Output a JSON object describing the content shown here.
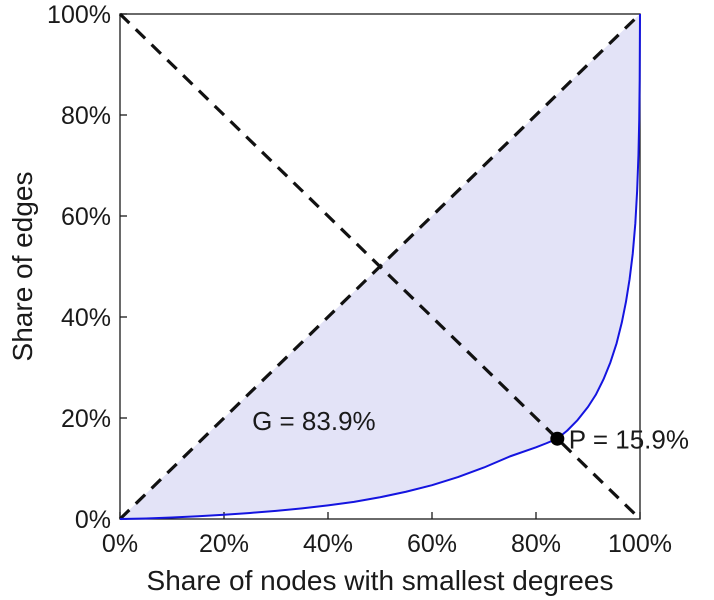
{
  "figure": {
    "background": "#ffffff",
    "text_color": "#1a1a1a"
  },
  "chart_data": {
    "type": "line",
    "title": "",
    "xlabel": "Share of nodes with smallest degrees",
    "ylabel": "Share of edges",
    "xlim": [
      0,
      100
    ],
    "ylim": [
      0,
      100
    ],
    "xticks": [
      0,
      20,
      40,
      60,
      80,
      100
    ],
    "yticks": [
      0,
      20,
      40,
      60,
      80,
      100
    ],
    "tick_suffix": "%",
    "grid": false,
    "legend": "none",
    "axis_color": "#1a1a1a",
    "reference_lines": [
      {
        "name": "equality-line",
        "from": [
          0,
          0
        ],
        "to": [
          100,
          100
        ],
        "color": "#111111",
        "style": "dashed"
      },
      {
        "name": "anti-diagonal-line",
        "from": [
          0,
          100
        ],
        "to": [
          100,
          0
        ],
        "color": "#111111",
        "style": "dashed"
      }
    ],
    "series": [
      {
        "name": "lorenz-curve-of-degree-distribution",
        "color": "#1414e0",
        "fill": "between-equality-line-and-curve",
        "fill_color": "#e3e3f7",
        "points": [
          [
            0,
            0
          ],
          [
            5,
            0.1
          ],
          [
            10,
            0.3
          ],
          [
            15,
            0.55
          ],
          [
            20,
            0.85
          ],
          [
            25,
            1.2
          ],
          [
            30,
            1.6
          ],
          [
            35,
            2.1
          ],
          [
            40,
            2.7
          ],
          [
            45,
            3.4
          ],
          [
            50,
            4.3
          ],
          [
            55,
            5.4
          ],
          [
            60,
            6.7
          ],
          [
            65,
            8.3
          ],
          [
            70,
            10.2
          ],
          [
            75,
            12.4
          ],
          [
            80,
            14.2
          ],
          [
            82,
            15.0
          ],
          [
            84.1,
            15.9
          ],
          [
            86,
            17.5
          ],
          [
            88,
            19.6
          ],
          [
            90,
            22.2
          ],
          [
            91.5,
            24.6
          ],
          [
            93,
            27.7
          ],
          [
            94.3,
            31
          ],
          [
            95.5,
            34.8
          ],
          [
            96.5,
            38.9
          ],
          [
            97.3,
            43
          ],
          [
            98,
            47.5
          ],
          [
            98.6,
            52.5
          ],
          [
            99.1,
            58.5
          ],
          [
            99.45,
            65
          ],
          [
            99.7,
            72
          ],
          [
            99.85,
            79
          ],
          [
            99.94,
            87
          ],
          [
            100,
            100
          ]
        ]
      }
    ],
    "annotations": {
      "gini": {
        "text": "G = 83.9%",
        "value": 83.9,
        "x": 25.4,
        "y": 17.6
      },
      "p": {
        "text": "P = 15.9%",
        "value": 15.9,
        "label_x": 86.3,
        "label_y": 14.0,
        "point": {
          "x": 84.1,
          "y": 15.9
        }
      }
    }
  }
}
